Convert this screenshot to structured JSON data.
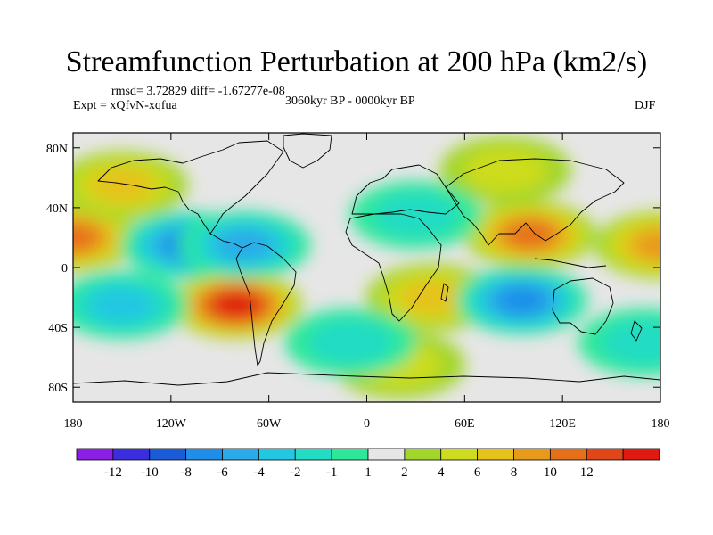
{
  "chart_data": {
    "type": "heatmap",
    "title": "Streamfunction Perturbation at 200 hPa (km2/s)",
    "stats": "rmsd= 3.72829 diff= -1.67277e-08",
    "experiment": "Expt = xQfvN-xqfua",
    "period": "3060kyr BP - 0000kyr BP",
    "season": "DJF",
    "x_ticks": [
      "180",
      "120W",
      "60W",
      "0",
      "60E",
      "120E",
      "180"
    ],
    "y_ticks": [
      "80N",
      "40N",
      "0",
      "40S",
      "80S"
    ],
    "xlim": [
      -180,
      180
    ],
    "ylim": [
      -90,
      90
    ],
    "projection": "cylindrical equidistant, land outlines overlaid",
    "colorbar": {
      "labels": [
        "-12",
        "-10",
        "-8",
        "-6",
        "-4",
        "-2",
        "-1",
        "1",
        "2",
        "4",
        "6",
        "8",
        "10",
        "12"
      ],
      "colors": [
        "#8c1ee6",
        "#3a2ee0",
        "#1a5cd8",
        "#1f8ee8",
        "#2aaae8",
        "#22c7e2",
        "#22dcc4",
        "#2ee89a",
        "#e6e6e6",
        "#a2d62a",
        "#cddc1f",
        "#e6c21a",
        "#e89a1a",
        "#e6701a",
        "#e04618",
        "#e01a10"
      ]
    },
    "field_features": [
      {
        "label": "positive max",
        "lon": -80,
        "lat": -25,
        "value": 12
      },
      {
        "label": "positive",
        "lon": -180,
        "lat": 20,
        "value": 8
      },
      {
        "label": "positive",
        "lon": 180,
        "lat": 15,
        "value": 6
      },
      {
        "label": "positive",
        "lon": 100,
        "lat": 22,
        "value": 8
      },
      {
        "label": "positive",
        "lon": -150,
        "lat": 55,
        "value": 4
      },
      {
        "label": "positive",
        "lon": 40,
        "lat": -20,
        "value": 4
      },
      {
        "label": "positive",
        "lon": 20,
        "lat": -65,
        "value": 2
      },
      {
        "label": "positive",
        "lon": 85,
        "lat": 65,
        "value": 2
      },
      {
        "label": "negative min",
        "lon": -110,
        "lat": 15,
        "value": -8
      },
      {
        "label": "negative",
        "lon": -75,
        "lat": 15,
        "value": -6
      },
      {
        "label": "negative",
        "lon": 95,
        "lat": -22,
        "value": -8
      },
      {
        "label": "negative",
        "lon": -150,
        "lat": -25,
        "value": -4
      },
      {
        "label": "negative",
        "lon": -10,
        "lat": -50,
        "value": -2
      },
      {
        "label": "negative",
        "lon": 30,
        "lat": 35,
        "value": -3
      },
      {
        "label": "negative",
        "lon": 170,
        "lat": -50,
        "value": -2
      }
    ]
  }
}
